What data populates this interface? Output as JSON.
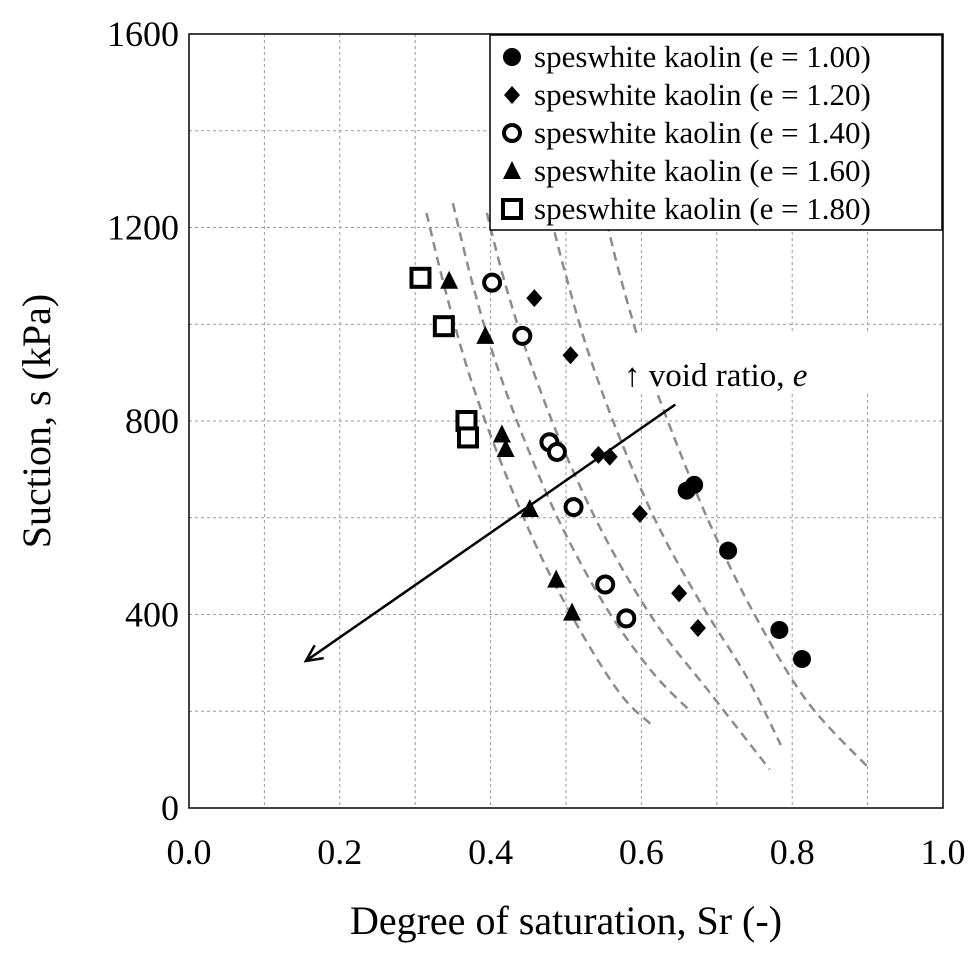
{
  "chart_data": {
    "type": "scatter",
    "title": "",
    "xlabel": "Degree of saturation, Sr (-)",
    "ylabel": "Suction, s (kPa)",
    "xlim": [
      0.0,
      1.0
    ],
    "ylim": [
      0,
      1600
    ],
    "x_ticks": [
      "0.0",
      "0.2",
      "0.4",
      "0.6",
      "0.8",
      "1.0"
    ],
    "y_ticks": [
      "0",
      "400",
      "800",
      "1200",
      "1600"
    ],
    "grid": true,
    "legend_position": "top-right",
    "series": [
      {
        "name": "speswhite kaolin (e = 1.00)",
        "marker": "filled-circle",
        "points": [
          [
            0.66,
            656
          ],
          [
            0.67,
            668
          ],
          [
            0.715,
            532
          ],
          [
            0.783,
            368
          ],
          [
            0.813,
            308
          ]
        ]
      },
      {
        "name": "speswhite kaolin (e = 1.20)",
        "marker": "filled-diamond",
        "points": [
          [
            0.458,
            1054
          ],
          [
            0.506,
            936
          ],
          [
            0.543,
            730
          ],
          [
            0.558,
            726
          ],
          [
            0.598,
            608
          ],
          [
            0.65,
            444
          ],
          [
            0.675,
            372
          ]
        ]
      },
      {
        "name": "speswhite kaolin (e = 1.40)",
        "marker": "open-circle",
        "points": [
          [
            0.402,
            1086
          ],
          [
            0.442,
            976
          ],
          [
            0.478,
            756
          ],
          [
            0.488,
            736
          ],
          [
            0.51,
            622
          ],
          [
            0.552,
            462
          ],
          [
            0.58,
            392
          ]
        ]
      },
      {
        "name": "speswhite kaolin (e = 1.60)",
        "marker": "filled-triangle",
        "points": [
          [
            0.345,
            1090
          ],
          [
            0.393,
            976
          ],
          [
            0.415,
            772
          ],
          [
            0.42,
            742
          ],
          [
            0.452,
            618
          ],
          [
            0.487,
            472
          ],
          [
            0.508,
            404
          ]
        ]
      },
      {
        "name": "speswhite kaolin (e = 1.80)",
        "marker": "open-square",
        "points": [
          [
            0.307,
            1096
          ],
          [
            0.338,
            996
          ],
          [
            0.368,
            800
          ],
          [
            0.37,
            766
          ]
        ]
      }
    ],
    "trend_curves": [
      [
        [
          0.315,
          1230
        ],
        [
          0.34,
          1070
        ],
        [
          0.375,
          880
        ],
        [
          0.42,
          690
        ],
        [
          0.47,
          510
        ],
        [
          0.525,
          350
        ],
        [
          0.575,
          230
        ],
        [
          0.615,
          170
        ]
      ],
      [
        [
          0.35,
          1250
        ],
        [
          0.375,
          1090
        ],
        [
          0.405,
          930
        ],
        [
          0.445,
          760
        ],
        [
          0.495,
          580
        ],
        [
          0.555,
          410
        ],
        [
          0.615,
          280
        ],
        [
          0.665,
          200
        ]
      ],
      [
        [
          0.395,
          1230
        ],
        [
          0.42,
          1080
        ],
        [
          0.455,
          910
        ],
        [
          0.5,
          730
        ],
        [
          0.555,
          550
        ],
        [
          0.62,
          380
        ],
        [
          0.69,
          240
        ],
        [
          0.77,
          80
        ]
      ],
      [
        [
          0.48,
          1220
        ],
        [
          0.5,
          1100
        ],
        [
          0.53,
          940
        ],
        [
          0.57,
          770
        ],
        [
          0.62,
          590
        ],
        [
          0.68,
          420
        ],
        [
          0.74,
          270
        ],
        [
          0.785,
          130
        ]
      ],
      [
        [
          0.55,
          1240
        ],
        [
          0.57,
          1110
        ],
        [
          0.6,
          950
        ],
        [
          0.64,
          780
        ],
        [
          0.69,
          590
        ],
        [
          0.75,
          400
        ],
        [
          0.82,
          220
        ],
        [
          0.9,
          85
        ]
      ]
    ],
    "arrow": {
      "from": [
        0.645,
        834
      ],
      "to": [
        0.155,
        304
      ]
    },
    "annotation": {
      "prefix": "↑ void ratio, ",
      "symbol": "e"
    }
  }
}
